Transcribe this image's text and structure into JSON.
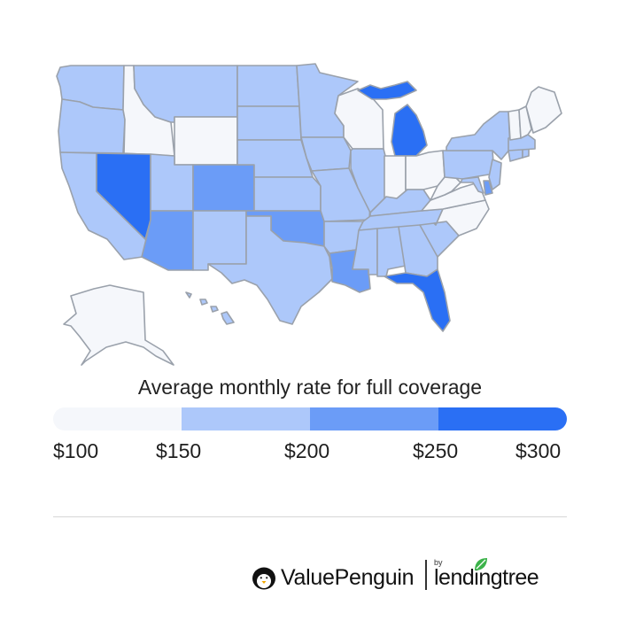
{
  "title": "Average monthly rate for full coverage",
  "legend": {
    "labels": [
      "$100",
      "$150",
      "$200",
      "$250",
      "$300"
    ],
    "colors": [
      "#f5f7fb",
      "#adc8fa",
      "#6b9cf7",
      "#2a6ff4"
    ]
  },
  "brand": {
    "value_penguin": "ValuePenguin",
    "by": "by",
    "lendingtree": "lendingtree"
  },
  "states": {
    "WA": 1,
    "OR": 1,
    "CA": 1,
    "ID": 0,
    "NV": 3,
    "MT": 1,
    "WY": 0,
    "UT": 1,
    "AZ": 2,
    "CO": 2,
    "NM": 1,
    "ND": 1,
    "SD": 1,
    "NE": 1,
    "KS": 1,
    "OK": 2,
    "TX": 1,
    "MN": 1,
    "IA": 1,
    "MO": 1,
    "AR": 1,
    "LA": 2,
    "WI": 0,
    "IL": 1,
    "MS": 1,
    "MI": 3,
    "IN": 0,
    "OH": 0,
    "KY": 1,
    "TN": 1,
    "AL": 1,
    "GA": 1,
    "FL": 3,
    "SC": 1,
    "NC": 0,
    "VA": 0,
    "WV": 0,
    "PA": 1,
    "NY": 1,
    "ME": 0,
    "VT": 0,
    "NH": 0,
    "MA": 1,
    "CT": 1,
    "RI": 1,
    "NJ": 1,
    "DE": 2,
    "MD": 1,
    "AK": 0,
    "HI": 1
  }
}
